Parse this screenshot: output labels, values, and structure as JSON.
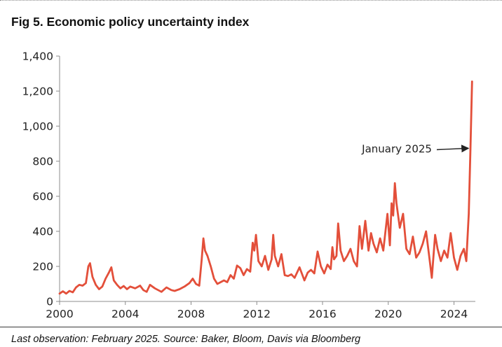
{
  "header": {
    "title": "Fig 5. Economic policy uncertainty index"
  },
  "footer": {
    "note": "Last observation: February 2025. Source: Baker, Bloom, Davis via Bloomberg"
  },
  "colors": {
    "series": "#e34f3a",
    "axis": "#8c8c8c",
    "text": "#222222"
  },
  "chart_data": {
    "type": "line",
    "title": "Fig 5. Economic policy uncertainty index",
    "xlabel": "",
    "ylabel": "",
    "xlim": [
      2000,
      2025.3
    ],
    "ylim": [
      0,
      1400
    ],
    "grid": false,
    "x_ticks": [
      2000,
      2004,
      2008,
      2012,
      2016,
      2020,
      2024
    ],
    "x_tick_labels": [
      "2000",
      "2004",
      "2008",
      "2012",
      "2016",
      "2020",
      "2024"
    ],
    "y_ticks": [
      0,
      200,
      400,
      600,
      800,
      1000,
      1200,
      1400
    ],
    "y_tick_labels": [
      "0",
      "200",
      "400",
      "600",
      "800",
      "1,000",
      "1,200",
      "1,400"
    ],
    "annotation": {
      "text": "January 2025",
      "target_x": 2025.0,
      "target_y": 870
    },
    "series": [
      {
        "values": [
          [
            2000.0,
            45
          ],
          [
            2000.2,
            58
          ],
          [
            2000.4,
            45
          ],
          [
            2000.6,
            60
          ],
          [
            2000.8,
            52
          ],
          [
            2001.0,
            80
          ],
          [
            2001.2,
            95
          ],
          [
            2001.4,
            90
          ],
          [
            2001.6,
            105
          ],
          [
            2001.75,
            200
          ],
          [
            2001.85,
            218
          ],
          [
            2002.0,
            140
          ],
          [
            2002.2,
            95
          ],
          [
            2002.4,
            70
          ],
          [
            2002.6,
            85
          ],
          [
            2002.8,
            130
          ],
          [
            2003.0,
            165
          ],
          [
            2003.15,
            195
          ],
          [
            2003.3,
            120
          ],
          [
            2003.5,
            95
          ],
          [
            2003.7,
            75
          ],
          [
            2003.9,
            88
          ],
          [
            2004.1,
            70
          ],
          [
            2004.3,
            85
          ],
          [
            2004.6,
            75
          ],
          [
            2004.9,
            90
          ],
          [
            2005.1,
            65
          ],
          [
            2005.3,
            55
          ],
          [
            2005.5,
            95
          ],
          [
            2005.8,
            75
          ],
          [
            2006.0,
            65
          ],
          [
            2006.2,
            55
          ],
          [
            2006.5,
            80
          ],
          [
            2006.8,
            65
          ],
          [
            2007.0,
            60
          ],
          [
            2007.3,
            70
          ],
          [
            2007.6,
            85
          ],
          [
            2007.9,
            105
          ],
          [
            2008.1,
            130
          ],
          [
            2008.3,
            100
          ],
          [
            2008.5,
            90
          ],
          [
            2008.65,
            240
          ],
          [
            2008.75,
            360
          ],
          [
            2008.85,
            290
          ],
          [
            2009.0,
            260
          ],
          [
            2009.2,
            200
          ],
          [
            2009.4,
            130
          ],
          [
            2009.6,
            100
          ],
          [
            2009.8,
            110
          ],
          [
            2010.0,
            120
          ],
          [
            2010.2,
            110
          ],
          [
            2010.4,
            150
          ],
          [
            2010.6,
            130
          ],
          [
            2010.8,
            205
          ],
          [
            2011.0,
            190
          ],
          [
            2011.2,
            150
          ],
          [
            2011.4,
            185
          ],
          [
            2011.6,
            170
          ],
          [
            2011.75,
            335
          ],
          [
            2011.85,
            290
          ],
          [
            2011.95,
            380
          ],
          [
            2012.1,
            230
          ],
          [
            2012.3,
            200
          ],
          [
            2012.5,
            260
          ],
          [
            2012.7,
            180
          ],
          [
            2012.9,
            240
          ],
          [
            2013.0,
            380
          ],
          [
            2013.1,
            260
          ],
          [
            2013.3,
            200
          ],
          [
            2013.5,
            270
          ],
          [
            2013.7,
            150
          ],
          [
            2013.9,
            145
          ],
          [
            2014.1,
            155
          ],
          [
            2014.3,
            135
          ],
          [
            2014.6,
            195
          ],
          [
            2014.9,
            120
          ],
          [
            2015.1,
            165
          ],
          [
            2015.3,
            180
          ],
          [
            2015.5,
            160
          ],
          [
            2015.7,
            285
          ],
          [
            2015.9,
            200
          ],
          [
            2016.1,
            160
          ],
          [
            2016.3,
            210
          ],
          [
            2016.5,
            185
          ],
          [
            2016.6,
            310
          ],
          [
            2016.7,
            240
          ],
          [
            2016.85,
            260
          ],
          [
            2016.95,
            445
          ],
          [
            2017.1,
            290
          ],
          [
            2017.3,
            230
          ],
          [
            2017.5,
            260
          ],
          [
            2017.7,
            300
          ],
          [
            2017.9,
            230
          ],
          [
            2018.1,
            200
          ],
          [
            2018.25,
            430
          ],
          [
            2018.4,
            300
          ],
          [
            2018.6,
            460
          ],
          [
            2018.8,
            290
          ],
          [
            2018.95,
            390
          ],
          [
            2019.1,
            330
          ],
          [
            2019.3,
            280
          ],
          [
            2019.5,
            360
          ],
          [
            2019.7,
            290
          ],
          [
            2019.95,
            500
          ],
          [
            2020.1,
            320
          ],
          [
            2020.2,
            560
          ],
          [
            2020.3,
            490
          ],
          [
            2020.4,
            675
          ],
          [
            2020.5,
            560
          ],
          [
            2020.7,
            420
          ],
          [
            2020.9,
            500
          ],
          [
            2021.1,
            300
          ],
          [
            2021.3,
            270
          ],
          [
            2021.5,
            370
          ],
          [
            2021.7,
            250
          ],
          [
            2021.9,
            280
          ],
          [
            2022.1,
            330
          ],
          [
            2022.3,
            400
          ],
          [
            2022.5,
            250
          ],
          [
            2022.65,
            135
          ],
          [
            2022.85,
            380
          ],
          [
            2023.0,
            300
          ],
          [
            2023.2,
            230
          ],
          [
            2023.4,
            290
          ],
          [
            2023.6,
            250
          ],
          [
            2023.8,
            390
          ],
          [
            2024.0,
            250
          ],
          [
            2024.2,
            180
          ],
          [
            2024.4,
            260
          ],
          [
            2024.6,
            300
          ],
          [
            2024.75,
            230
          ],
          [
            2024.9,
            500
          ],
          [
            2025.0,
            870
          ],
          [
            2025.1,
            1255
          ]
        ]
      }
    ]
  }
}
